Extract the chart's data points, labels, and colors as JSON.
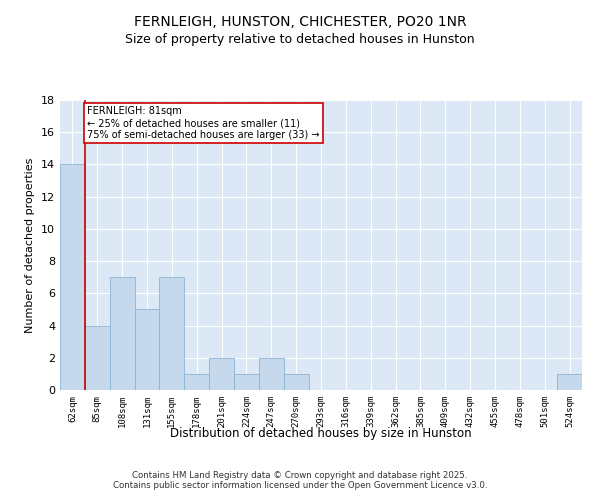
{
  "title": "FERNLEIGH, HUNSTON, CHICHESTER, PO20 1NR",
  "subtitle": "Size of property relative to detached houses in Hunston",
  "xlabel": "Distribution of detached houses by size in Hunston",
  "ylabel": "Number of detached properties",
  "categories": [
    "62sqm",
    "85sqm",
    "108sqm",
    "131sqm",
    "155sqm",
    "178sqm",
    "201sqm",
    "224sqm",
    "247sqm",
    "270sqm",
    "293sqm",
    "316sqm",
    "339sqm",
    "362sqm",
    "385sqm",
    "409sqm",
    "432sqm",
    "455sqm",
    "478sqm",
    "501sqm",
    "524sqm"
  ],
  "values": [
    14,
    4,
    7,
    5,
    7,
    1,
    2,
    1,
    2,
    1,
    0,
    0,
    0,
    0,
    0,
    0,
    0,
    0,
    0,
    0,
    1
  ],
  "bar_color": "#c5d8ec",
  "bar_edge_color": "#8ab4d4",
  "property_line_color": "#cc0000",
  "annotation_text": "FERNLEIGH: 81sqm\n← 25% of detached houses are smaller (11)\n75% of semi-detached houses are larger (33) →",
  "annotation_box_color": "#ffffff",
  "annotation_box_edge_color": "#cc0000",
  "ylim": [
    0,
    18
  ],
  "yticks": [
    0,
    2,
    4,
    6,
    8,
    10,
    12,
    14,
    16,
    18
  ],
  "bg_color": "#dce8f5",
  "footer_line1": "Contains HM Land Registry data © Crown copyright and database right 2025.",
  "footer_line2": "Contains public sector information licensed under the Open Government Licence v3.0.",
  "title_fontsize": 10,
  "subtitle_fontsize": 9
}
